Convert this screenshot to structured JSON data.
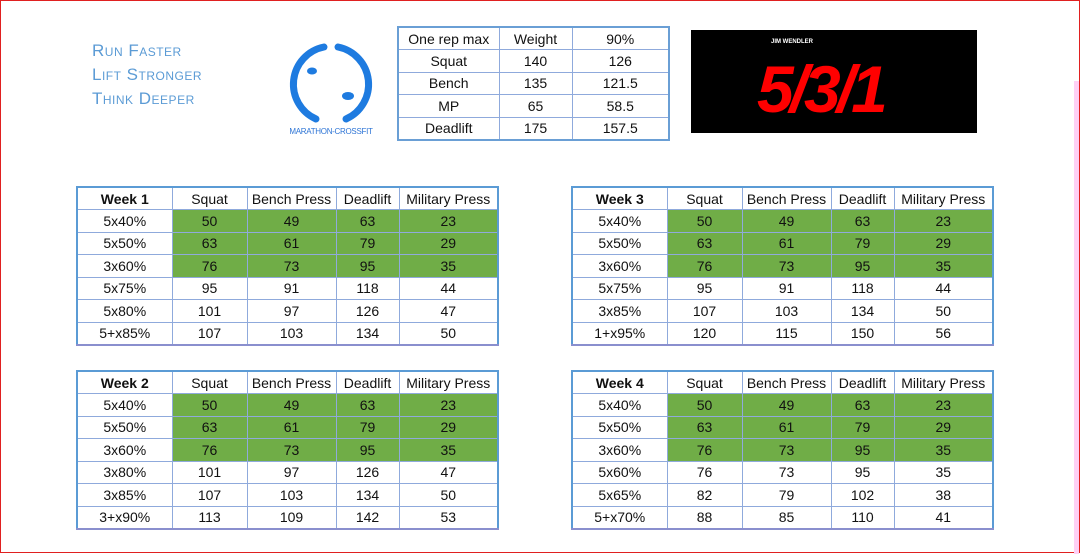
{
  "slogan": [
    "Run Faster",
    "Lift Stronger",
    "Think Deeper"
  ],
  "logo": {
    "text": "MARATHON-CROSSFIT",
    "color": "#2e75d6"
  },
  "brand": {
    "author": "JIM WENDLER",
    "title": "5/3/1",
    "bg": "#000000",
    "color": "#ff0000"
  },
  "one_rep_max": {
    "headers": [
      "One rep max",
      "Weight",
      "90%"
    ],
    "rows": [
      [
        "Squat",
        "140",
        "126"
      ],
      [
        "Bench",
        "135",
        "121.5"
      ],
      [
        "MP",
        "65",
        "58.5"
      ],
      [
        "Deadlift",
        "175",
        "157.5"
      ]
    ]
  },
  "colors": {
    "highlight": "#70ad47",
    "border": "#5b9bd5"
  },
  "weeks": [
    {
      "headers": [
        "Week 1",
        "Squat",
        "Bench Press",
        "Deadlift",
        "Military Press"
      ],
      "rows": [
        [
          "5x40%",
          "50",
          "49",
          "63",
          "23"
        ],
        [
          "5x50%",
          "63",
          "61",
          "79",
          "29"
        ],
        [
          "3x60%",
          "76",
          "73",
          "95",
          "35"
        ],
        [
          "5x75%",
          "95",
          "91",
          "118",
          "44"
        ],
        [
          "5x80%",
          "101",
          "97",
          "126",
          "47"
        ],
        [
          "5+x85%",
          "107",
          "103",
          "134",
          "50"
        ]
      ]
    },
    {
      "headers": [
        "Week 3",
        "Squat",
        "Bench Press",
        "Deadlift",
        "Military Press"
      ],
      "rows": [
        [
          "5x40%",
          "50",
          "49",
          "63",
          "23"
        ],
        [
          "5x50%",
          "63",
          "61",
          "79",
          "29"
        ],
        [
          "3x60%",
          "76",
          "73",
          "95",
          "35"
        ],
        [
          "5x75%",
          "95",
          "91",
          "118",
          "44"
        ],
        [
          "3x85%",
          "107",
          "103",
          "134",
          "50"
        ],
        [
          "1+x95%",
          "120",
          "115",
          "150",
          "56"
        ]
      ]
    },
    {
      "headers": [
        "Week 2",
        "Squat",
        "Bench Press",
        "Deadlift",
        "Military Press"
      ],
      "rows": [
        [
          "5x40%",
          "50",
          "49",
          "63",
          "23"
        ],
        [
          "5x50%",
          "63",
          "61",
          "79",
          "29"
        ],
        [
          "3x60%",
          "76",
          "73",
          "95",
          "35"
        ],
        [
          "3x80%",
          "101",
          "97",
          "126",
          "47"
        ],
        [
          "3x85%",
          "107",
          "103",
          "134",
          "50"
        ],
        [
          "3+x90%",
          "113",
          "109",
          "142",
          "53"
        ]
      ]
    },
    {
      "headers": [
        "Week 4",
        "Squat",
        "Bench Press",
        "Deadlift",
        "Military Press"
      ],
      "rows": [
        [
          "5x40%",
          "50",
          "49",
          "63",
          "23"
        ],
        [
          "5x50%",
          "63",
          "61",
          "79",
          "29"
        ],
        [
          "3x60%",
          "76",
          "73",
          "95",
          "35"
        ],
        [
          "5x60%",
          "76",
          "73",
          "95",
          "35"
        ],
        [
          "5x65%",
          "82",
          "79",
          "102",
          "38"
        ],
        [
          "5+x70%",
          "88",
          "85",
          "110",
          "41"
        ]
      ]
    }
  ]
}
